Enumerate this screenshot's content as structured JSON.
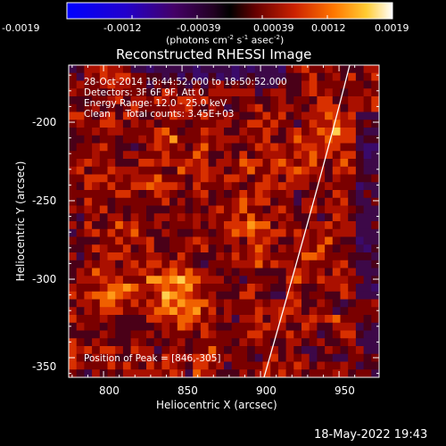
{
  "colorbar": {
    "ticks": [
      "-0.0019",
      "-0.0012",
      "-0.00039",
      "0.00039",
      "0.0012",
      "0.0019"
    ],
    "unit_base": "(photons cm",
    "unit_exp1": "-2",
    "unit_mid1": " s",
    "unit_exp2": "-1",
    "unit_mid2": " asec",
    "unit_exp3": "-2",
    "unit_end": ")"
  },
  "plot": {
    "title": "Reconstructed RHESSI Image",
    "info_lines": [
      "28-Oct-2014 18:44:52.000 to 18:50:52.000",
      "Detectors: 3F 6F 9F, Att 0",
      "Energy Range: 12.0 - 25.0 keV",
      "Clean     Total counts: 3.45E+03"
    ],
    "peak_label": "Position of Peak = [846,-305]",
    "xlabel": "Heliocentric X (arcsec)",
    "ylabel": "Heliocentric Y (arcsec)",
    "xticks": [
      "800",
      "850",
      "900",
      "950"
    ],
    "yticks": [
      "-200",
      "-250",
      "-300",
      "-350"
    ]
  },
  "footer": {
    "date": "18-May-2022 19:43"
  },
  "colors": {
    "background": "#000000",
    "foreground": "#ffffff",
    "limb": "#ffffff"
  }
}
